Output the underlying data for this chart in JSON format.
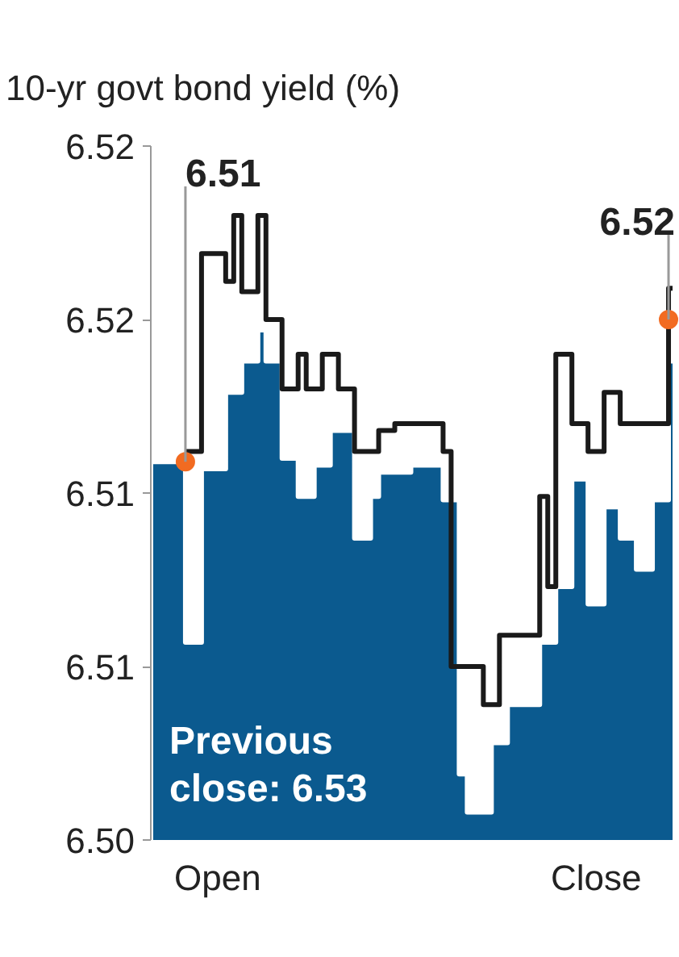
{
  "chart_data": {
    "type": "area",
    "title": "10-yr govt bond yield (%)",
    "categories": [
      null,
      null,
      null,
      null,
      null,
      null,
      null,
      null,
      "Open",
      null,
      null,
      null,
      null,
      null,
      null,
      null,
      null,
      null,
      null,
      null,
      null,
      null,
      null,
      null,
      null,
      null,
      null,
      null,
      null,
      null,
      null,
      null,
      null,
      null,
      null,
      null,
      null,
      null,
      null,
      null,
      null,
      null,
      null,
      null,
      null,
      null,
      null,
      null,
      null,
      null,
      null,
      null,
      null,
      null,
      null,
      "Close",
      null,
      null,
      null,
      null,
      null,
      null,
      null,
      null,
      null
    ],
    "ylim": [
      6.5,
      6.52
    ],
    "yticks": [
      {
        "value": 6.5,
        "label": "6.50"
      },
      {
        "value": 6.505,
        "label": "6.51"
      },
      {
        "value": 6.51,
        "label": "6.51"
      },
      {
        "value": 6.515,
        "label": "6.52"
      },
      {
        "value": 6.52,
        "label": "6.52"
      }
    ],
    "grid": false,
    "series": [
      {
        "color": "#0b5a8f",
        "values": [
          6.5109,
          6.5109,
          6.5109,
          6.5109,
          6.5057,
          6.5057,
          6.5107,
          6.5107,
          6.5107,
          6.5129,
          6.5129,
          6.5138,
          6.5138,
          6.5147,
          6.5138,
          6.5138,
          6.511,
          6.511,
          6.5099,
          6.5099,
          6.5108,
          6.5108,
          6.5118,
          6.5118,
          6.5118,
          6.5087,
          6.5087,
          6.5099,
          6.5106,
          6.5106,
          6.5106,
          6.5106,
          6.5108,
          6.5108,
          6.5108,
          6.5108,
          6.5098,
          6.5098,
          6.5019,
          6.5008,
          6.5008,
          6.5008,
          6.5028,
          6.5028,
          6.5039,
          6.5039,
          6.5039,
          6.5039,
          6.5057,
          6.5057,
          6.5073,
          6.5073,
          6.5104,
          6.5104,
          6.5068,
          6.5068,
          6.5096,
          6.5096,
          6.5087,
          6.5087,
          6.5078,
          6.5078,
          6.5098,
          6.5098,
          6.5138
        ]
      },
      {
        "type": "step",
        "color": "#1a1a1a",
        "values": [
          null,
          null,
          null,
          null,
          6.5112,
          6.5112,
          6.5169,
          6.5169,
          6.5169,
          6.5161,
          6.518,
          6.5158,
          6.5158,
          6.518,
          6.515,
          6.515,
          6.513,
          6.513,
          6.514,
          6.513,
          6.513,
          6.514,
          6.514,
          6.513,
          6.513,
          6.5112,
          6.5112,
          6.5112,
          6.5118,
          6.5118,
          6.512,
          6.512,
          6.512,
          6.512,
          6.512,
          6.512,
          6.5112,
          6.505,
          6.505,
          6.505,
          6.505,
          6.5039,
          6.5039,
          6.5059,
          6.5059,
          6.5059,
          6.5059,
          6.5059,
          6.5099,
          6.5073,
          6.514,
          6.514,
          6.512,
          6.512,
          6.5112,
          6.5112,
          6.5129,
          6.5129,
          6.512,
          6.512,
          6.512,
          6.512,
          6.512,
          6.512,
          6.5159
        ]
      },
      {
        "type": "scatter",
        "color": "#f26b21",
        "marker": "circle",
        "values": [
          null,
          null,
          null,
          null,
          6.5109,
          null,
          null,
          null,
          null,
          null,
          null,
          null,
          null,
          null,
          null,
          null,
          null,
          null,
          null,
          null,
          null,
          null,
          null,
          null,
          null,
          null,
          null,
          null,
          null,
          null,
          null,
          null,
          null,
          null,
          null,
          null,
          null,
          null,
          null,
          null,
          null,
          null,
          null,
          null,
          null,
          null,
          null,
          null,
          null,
          null,
          null,
          null,
          null,
          null,
          null,
          null,
          null,
          null,
          null,
          null,
          null,
          null,
          null,
          null,
          6.515
        ],
        "value_labels": [
          null,
          null,
          null,
          null,
          "6.51",
          null,
          null,
          null,
          null,
          null,
          null,
          null,
          null,
          null,
          null,
          null,
          null,
          null,
          null,
          null,
          null,
          null,
          null,
          null,
          null,
          null,
          null,
          null,
          null,
          null,
          null,
          null,
          null,
          null,
          null,
          null,
          null,
          null,
          null,
          null,
          null,
          null,
          null,
          null,
          null,
          null,
          null,
          null,
          null,
          null,
          null,
          null,
          null,
          null,
          null,
          null,
          null,
          null,
          null,
          null,
          null,
          null,
          null,
          null,
          "6.52"
        ]
      }
    ],
    "annotations": [
      "Previous close: 6.53"
    ]
  }
}
